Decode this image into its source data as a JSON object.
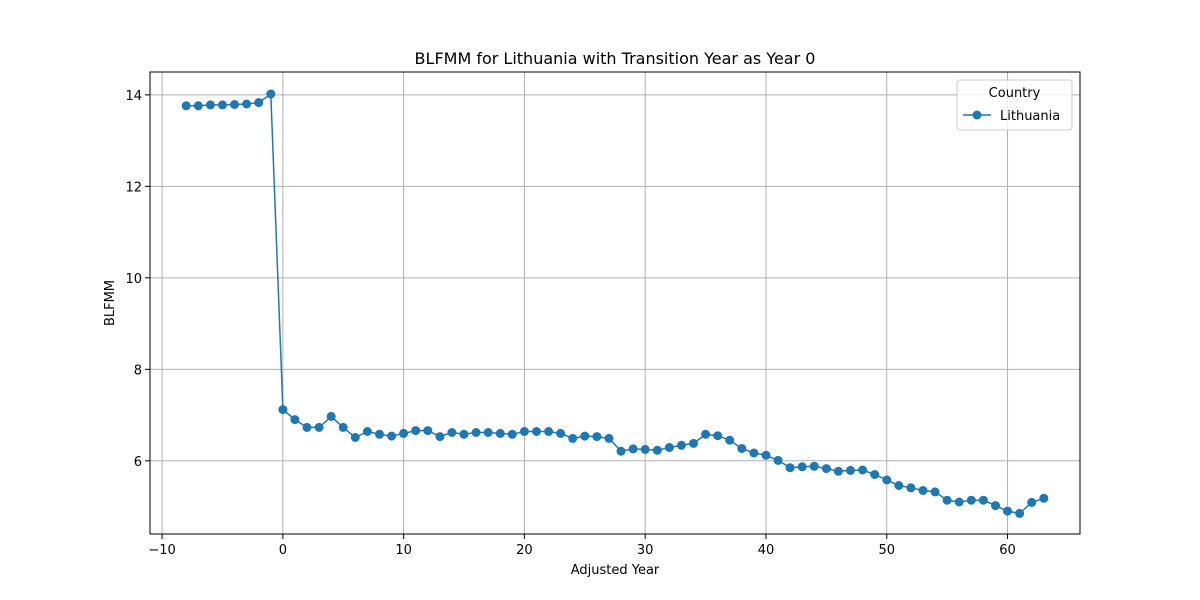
{
  "chart_data": {
    "type": "line",
    "title": "BLFMM for Lithuania with Transition Year as Year 0",
    "xlabel": "Adjusted Year",
    "ylabel": "BLFMM",
    "xlim": [
      -11,
      66
    ],
    "ylim": [
      4.4,
      14.5
    ],
    "xticks": [
      -10,
      0,
      10,
      20,
      30,
      40,
      50,
      60
    ],
    "yticks": [
      6,
      8,
      10,
      12,
      14
    ],
    "grid": true,
    "legend": {
      "title": "Country",
      "placement": "top-right"
    },
    "series": [
      {
        "name": "Lithuania",
        "color": "#1f77b4",
        "marker": "circle",
        "x": [
          -8,
          -7,
          -6,
          -5,
          -4,
          -3,
          -2,
          -1,
          0,
          1,
          2,
          3,
          4,
          5,
          6,
          7,
          8,
          9,
          10,
          11,
          12,
          13,
          14,
          15,
          16,
          17,
          18,
          19,
          20,
          21,
          22,
          23,
          24,
          25,
          26,
          27,
          28,
          29,
          30,
          31,
          32,
          33,
          34,
          35,
          36,
          37,
          38,
          39,
          40,
          41,
          42,
          43,
          44,
          45,
          46,
          47,
          48,
          49,
          50,
          51,
          52,
          53,
          54,
          55,
          56,
          57,
          58,
          59,
          60,
          61,
          62,
          63
        ],
        "values": [
          13.76,
          13.76,
          13.78,
          13.78,
          13.79,
          13.8,
          13.83,
          14.02,
          7.12,
          6.9,
          6.73,
          6.73,
          6.97,
          6.73,
          6.51,
          6.64,
          6.58,
          6.54,
          6.6,
          6.66,
          6.66,
          6.53,
          6.62,
          6.58,
          6.62,
          6.62,
          6.6,
          6.58,
          6.64,
          6.64,
          6.64,
          6.6,
          6.49,
          6.54,
          6.53,
          6.49,
          6.21,
          6.26,
          6.25,
          6.23,
          6.29,
          6.34,
          6.38,
          6.58,
          6.55,
          6.45,
          6.27,
          6.17,
          6.12,
          6.01,
          5.85,
          5.87,
          5.88,
          5.83,
          5.77,
          5.79,
          5.8,
          5.7,
          5.58,
          5.46,
          5.41,
          5.35,
          5.32,
          5.14,
          5.1,
          5.14,
          5.14,
          5.02,
          4.9,
          4.85,
          5.09,
          5.18
        ]
      }
    ]
  }
}
